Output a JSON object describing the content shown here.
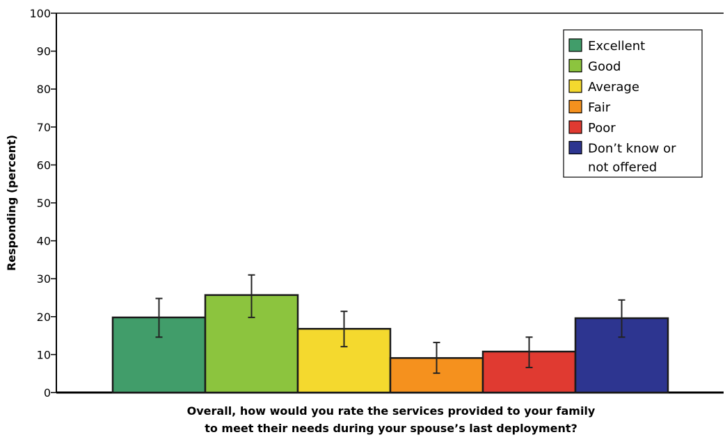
{
  "chart_data": {
    "type": "bar",
    "title": "",
    "xlabel": "Overall, how would you rate the services provided to your family to meet their needs during your spouse’s last deployment?",
    "xlabel_lines": [
      "Overall, how would you rate the services provided to your family",
      "to meet their needs during your spouse’s last deployment?"
    ],
    "ylabel": "Responding (percent)",
    "ylim": [
      0,
      100
    ],
    "yticks": [
      0,
      10,
      20,
      30,
      40,
      50,
      60,
      70,
      80,
      90,
      100
    ],
    "grid": false,
    "legend_position": "top-right",
    "categories": [
      "Excellent",
      "Good",
      "Average",
      "Fair",
      "Poor",
      "Don’t know or not offered"
    ],
    "legend_labels": [
      [
        "Excellent"
      ],
      [
        "Good"
      ],
      [
        "Average"
      ],
      [
        "Fair"
      ],
      [
        "Poor"
      ],
      [
        "Don’t know or",
        "not offered"
      ]
    ],
    "values": [
      19.8,
      25.7,
      16.8,
      9.1,
      10.8,
      19.6
    ],
    "error_low": [
      14.6,
      19.8,
      12.1,
      5.1,
      6.6,
      14.6
    ],
    "error_high": [
      24.8,
      31.0,
      21.4,
      13.2,
      14.6,
      24.4
    ],
    "colors": [
      "#419d6a",
      "#8cc43e",
      "#f4d92e",
      "#f5911e",
      "#e03a31",
      "#2d3590"
    ]
  }
}
